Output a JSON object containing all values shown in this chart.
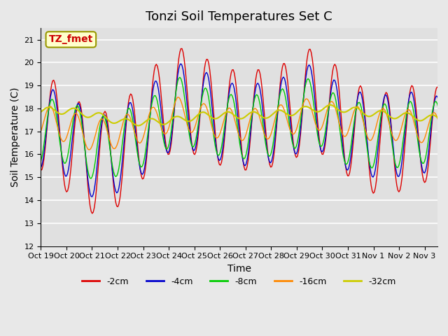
{
  "title": "Tonzi Soil Temperatures Set C",
  "xlabel": "Time",
  "ylabel": "Soil Temperature (C)",
  "ylim": [
    12.0,
    21.5
  ],
  "yticks": [
    12.0,
    13.0,
    14.0,
    15.0,
    16.0,
    17.0,
    18.0,
    19.0,
    20.0,
    21.0
  ],
  "xtick_labels": [
    "Oct 19",
    "Oct 20",
    "Oct 21",
    "Oct 22",
    "Oct 23",
    "Oct 24",
    "Oct 25",
    "Oct 26",
    "Oct 27",
    "Oct 28",
    "Oct 29",
    "Oct 30",
    "Oct 31",
    "Nov 1",
    "Nov 2",
    "Nov 3"
  ],
  "legend_labels": [
    "-2cm",
    "-4cm",
    "-8cm",
    "-16cm",
    "-32cm"
  ],
  "line_colors": [
    "#dd0000",
    "#0000cc",
    "#00cc00",
    "#ff8800",
    "#cccc00"
  ],
  "annotation_label": "TZ_fmet",
  "annotation_box_color": "#ffffcc",
  "annotation_box_edge": "#999900",
  "fig_bg_color": "#e8e8e8",
  "plot_bg_color": "#e0e0e0",
  "grid_color": "#ffffff",
  "title_fontsize": 13,
  "axis_label_fontsize": 10,
  "tick_fontsize": 8,
  "legend_fontsize": 9,
  "n_days": 16,
  "base_2cm": [
    17.5,
    16.5,
    15.5,
    16.0,
    17.5,
    18.5,
    18.0,
    17.5,
    17.5,
    17.8,
    18.5,
    17.5,
    16.5,
    16.5,
    17.0,
    16.5
  ],
  "base_4cm": [
    17.2,
    16.8,
    15.8,
    16.2,
    17.2,
    18.2,
    17.8,
    17.3,
    17.3,
    17.6,
    18.2,
    17.2,
    16.8,
    16.8,
    17.0,
    16.5
  ],
  "base_8cm": [
    17.0,
    17.0,
    16.2,
    16.5,
    17.0,
    18.0,
    17.5,
    17.2,
    17.2,
    17.5,
    18.0,
    17.0,
    16.8,
    16.8,
    17.0,
    16.8
  ],
  "base_16cm": [
    17.5,
    17.2,
    16.8,
    17.0,
    17.3,
    17.8,
    17.5,
    17.3,
    17.3,
    17.5,
    17.8,
    17.5,
    17.3,
    17.3,
    17.2,
    17.0
  ],
  "base_32cm": [
    17.9,
    17.9,
    17.7,
    17.4,
    17.4,
    17.5,
    17.7,
    17.7,
    17.7,
    17.8,
    18.0,
    18.0,
    17.8,
    17.7,
    17.6,
    17.5
  ],
  "amp_2cm": 2.2,
  "amp_4cm": 1.8,
  "amp_8cm": 1.4,
  "amp_16cm": 0.7,
  "amp_32cm": 0.15,
  "phase_2cm": 0.0,
  "phase_4cm": 0.15,
  "phase_8cm": 0.4,
  "phase_16cm": 0.8,
  "phase_32cm": 1.2
}
